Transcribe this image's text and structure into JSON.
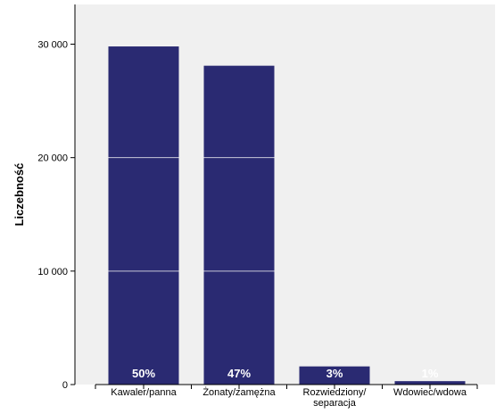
{
  "chart_data": {
    "type": "bar",
    "categories": [
      [
        "Kawaler/panna"
      ],
      [
        "Żonaty/zamężna"
      ],
      [
        "Rozwiedziony/",
        "separacja"
      ],
      [
        "Wdowiec/wdowa"
      ]
    ],
    "values": [
      29800,
      28100,
      1600,
      300
    ],
    "data_labels": [
      "50%",
      "47%",
      "3%",
      "1%"
    ],
    "ylabel": "Liczebność",
    "ylim": [
      0,
      33500
    ],
    "yticks": [
      0,
      10000,
      20000,
      30000
    ],
    "ytick_labels": [
      "0",
      "10 000",
      "20 000",
      "30 000"
    ],
    "gridlines": [
      10000,
      20000
    ],
    "grid": "horizontal lines visible across bars only",
    "colors": {
      "bar": "#2a2a72",
      "plot_background": "#f0f0f0",
      "gridline": "#c8c8d8",
      "axis": "#000000"
    }
  }
}
